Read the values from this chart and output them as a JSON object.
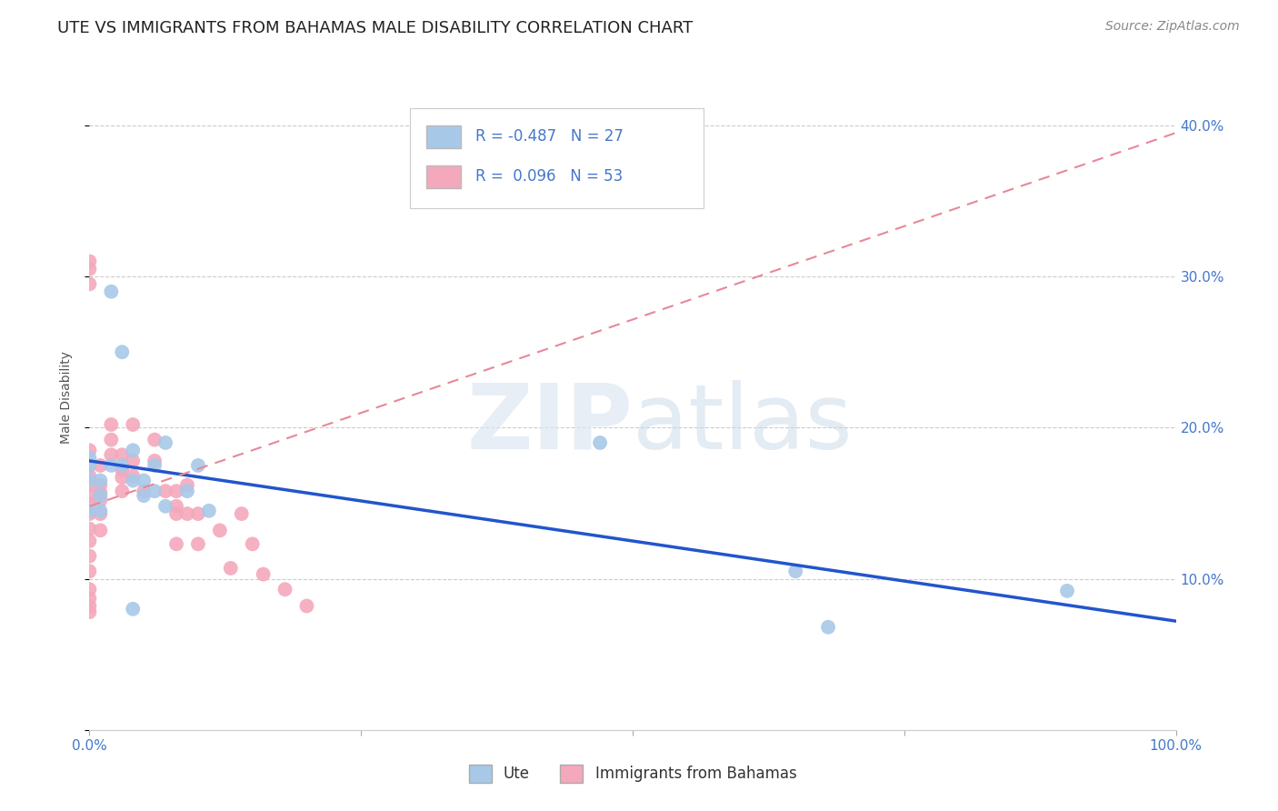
{
  "title": "UTE VS IMMIGRANTS FROM BAHAMAS MALE DISABILITY CORRELATION CHART",
  "source": "Source: ZipAtlas.com",
  "ylabel": "Male Disability",
  "xlim": [
    0,
    1.0
  ],
  "ylim": [
    0,
    0.44
  ],
  "xticks": [
    0.0,
    0.25,
    0.5,
    0.75,
    1.0
  ],
  "xtick_labels": [
    "0.0%",
    "",
    "",
    "",
    "100.0%"
  ],
  "yticks": [
    0.0,
    0.1,
    0.2,
    0.3,
    0.4
  ],
  "ytick_labels": [
    "",
    "10.0%",
    "20.0%",
    "30.0%",
    "40.0%"
  ],
  "grid_color": "#cccccc",
  "background_color": "#ffffff",
  "legend_R_blue": "-0.487",
  "legend_N_blue": "27",
  "legend_R_pink": "0.096",
  "legend_N_pink": "53",
  "blue_color": "#a8c8e8",
  "pink_color": "#f4a8bc",
  "blue_line_color": "#2255cc",
  "pink_line_color": "#e88898",
  "tick_color": "#4477cc",
  "legend_text_color": "#4477cc",
  "ute_x": [
    0.02,
    0.03,
    0.07,
    0.04,
    0.0,
    0.0,
    0.0,
    0.0,
    0.01,
    0.01,
    0.01,
    0.02,
    0.03,
    0.04,
    0.04,
    0.05,
    0.05,
    0.06,
    0.06,
    0.07,
    0.09,
    0.1,
    0.11,
    0.47,
    0.65,
    0.9,
    0.68
  ],
  "ute_y": [
    0.29,
    0.25,
    0.19,
    0.08,
    0.18,
    0.175,
    0.165,
    0.145,
    0.165,
    0.155,
    0.145,
    0.175,
    0.175,
    0.185,
    0.165,
    0.155,
    0.165,
    0.175,
    0.158,
    0.148,
    0.158,
    0.175,
    0.145,
    0.19,
    0.105,
    0.092,
    0.068
  ],
  "bahamas_x": [
    0.0,
    0.0,
    0.0,
    0.0,
    0.0,
    0.0,
    0.0,
    0.0,
    0.0,
    0.0,
    0.0,
    0.0,
    0.0,
    0.0,
    0.0,
    0.0,
    0.0,
    0.0,
    0.01,
    0.01,
    0.01,
    0.01,
    0.01,
    0.01,
    0.02,
    0.02,
    0.02,
    0.03,
    0.03,
    0.03,
    0.03,
    0.04,
    0.04,
    0.04,
    0.05,
    0.06,
    0.06,
    0.07,
    0.08,
    0.08,
    0.08,
    0.08,
    0.09,
    0.09,
    0.1,
    0.1,
    0.12,
    0.13,
    0.14,
    0.15,
    0.16,
    0.18,
    0.2
  ],
  "bahamas_y": [
    0.31,
    0.305,
    0.295,
    0.185,
    0.175,
    0.168,
    0.162,
    0.155,
    0.15,
    0.143,
    0.133,
    0.125,
    0.115,
    0.105,
    0.093,
    0.087,
    0.082,
    0.078,
    0.175,
    0.162,
    0.157,
    0.152,
    0.143,
    0.132,
    0.202,
    0.192,
    0.182,
    0.182,
    0.172,
    0.167,
    0.158,
    0.202,
    0.178,
    0.168,
    0.158,
    0.192,
    0.178,
    0.158,
    0.158,
    0.148,
    0.143,
    0.123,
    0.162,
    0.143,
    0.143,
    0.123,
    0.132,
    0.107,
    0.143,
    0.123,
    0.103,
    0.093,
    0.082
  ],
  "blue_trend_x0": 0.0,
  "blue_trend_x1": 1.0,
  "blue_trend_y0": 0.178,
  "blue_trend_y1": 0.072,
  "pink_trend_x0": 0.0,
  "pink_trend_x1": 1.0,
  "pink_trend_y0": 0.148,
  "pink_trend_y1": 0.395,
  "watermark_zip": "ZIP",
  "watermark_atlas": "atlas",
  "title_fontsize": 13,
  "axis_label_fontsize": 10,
  "tick_fontsize": 11,
  "legend_fontsize": 12,
  "source_fontsize": 10
}
